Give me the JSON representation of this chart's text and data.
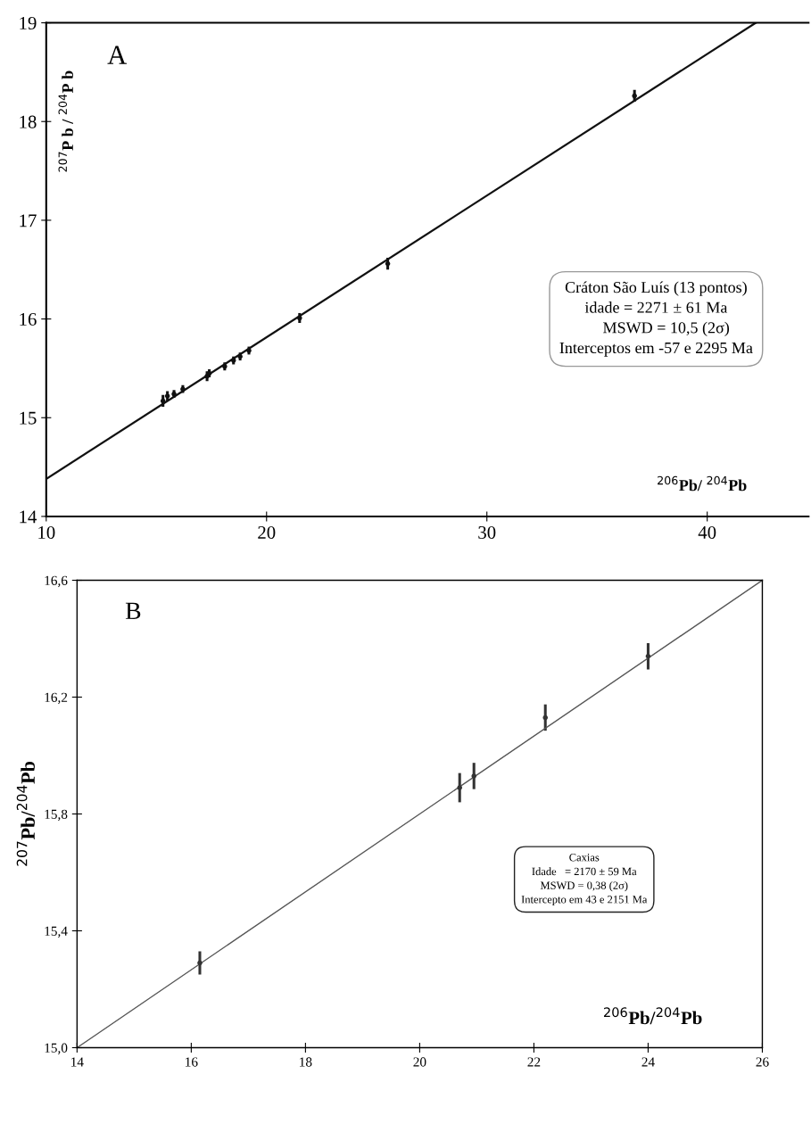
{
  "chart_data": [
    {
      "type": "scatter",
      "title": "A",
      "xlabel": "$^{206}$Pb/ $^{204}$Pb",
      "ylabel": "$^{207}$P b / $^{204}$P b",
      "xlim": [
        10,
        44.6
      ],
      "xticks": [
        10,
        20,
        30,
        40
      ],
      "ylim": [
        14,
        19
      ],
      "yticks": [
        14,
        15,
        16,
        17,
        18,
        19
      ],
      "series": [
        {
          "type": "scatter",
          "color": "#111111",
          "x": [
            15.3,
            15.5,
            15.8,
            16.2,
            17.3,
            17.4,
            18.1,
            18.5,
            18.8,
            19.2,
            21.5,
            25.5,
            36.7
          ],
          "values": [
            15.17,
            15.22,
            15.24,
            15.29,
            15.42,
            15.45,
            15.52,
            15.58,
            15.62,
            15.68,
            16.01,
            16.56,
            18.26
          ],
          "errors": [
            0.06,
            0.05,
            0.04,
            0.04,
            0.05,
            0.04,
            0.04,
            0.04,
            0.04,
            0.04,
            0.05,
            0.06,
            0.06
          ]
        },
        {
          "type": "line",
          "color": "#111111",
          "x": [
            10,
            42.2
          ],
          "values": [
            14.38,
            19
          ]
        }
      ],
      "annotations": [
        "Cráton São Luís (13 pontos)",
        "idade = 2271 ± 61 Ma",
        "     MSWD = 10,5 (2σ)",
        "Interceptos em -57 e 2295 Ma"
      ]
    },
    {
      "type": "scatter",
      "title": "B",
      "xlabel": "$^{206}$Pb/$^{204}$Pb",
      "ylabel": "$^{207}$Pb/$^{204}$Pb",
      "xlim": [
        14,
        26
      ],
      "xticks": [
        14,
        16,
        18,
        20,
        22,
        24,
        26
      ],
      "ylim": [
        15.0,
        16.6
      ],
      "yticks": [
        {
          "value": 15.0,
          "label": "15,0"
        },
        {
          "value": 15.4,
          "label": "15,4"
        },
        {
          "value": 15.8,
          "label": "15,8"
        },
        {
          "value": 16.2,
          "label": "16,2"
        },
        {
          "value": 16.6,
          "label": "16,6"
        }
      ],
      "series": [
        {
          "type": "scatter",
          "color": "#333333",
          "x": [
            16.15,
            20.7,
            20.95,
            22.2,
            24.0
          ],
          "values": [
            15.29,
            15.89,
            15.93,
            16.13,
            16.34
          ],
          "errors": [
            0.04,
            0.05,
            0.045,
            0.045,
            0.045
          ]
        },
        {
          "type": "line",
          "color": "#555555",
          "x": [
            14,
            26
          ],
          "values": [
            15.0,
            16.6
          ]
        }
      ],
      "annotations": [
        "Caxias",
        "Idade   = 2170 ± 59 Ma",
        "MSWD = 0,38 (2σ)",
        "Intercepto em 43 e 2151 Ma"
      ]
    }
  ]
}
